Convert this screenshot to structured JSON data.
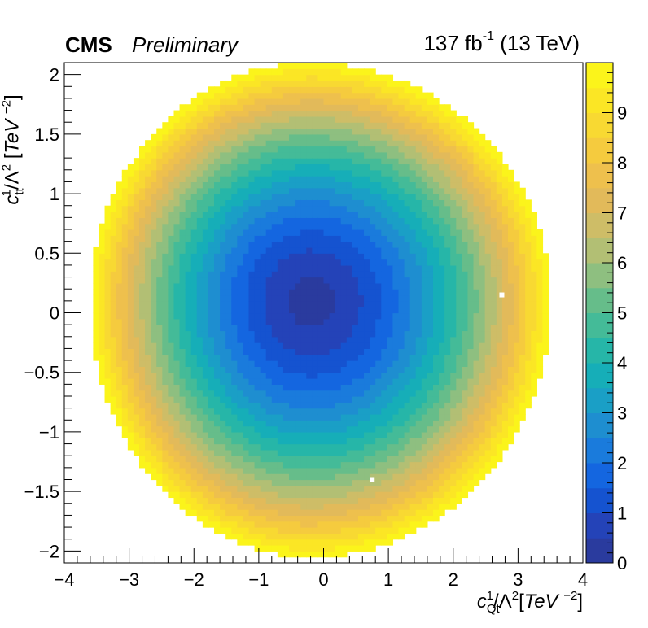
{
  "header": {
    "experiment": "CMS",
    "status": "Preliminary",
    "lumi_value": "137 fb",
    "lumi_exp": "-1",
    "energy": "(13 TeV)"
  },
  "chart_data": {
    "type": "heatmap",
    "title": "",
    "xlabel": "c_Qt^1/Λ^2[TeV^-2]",
    "ylabel": "c_tt^1/Λ^2[TeV^-2]",
    "xlim": [
      -4,
      4
    ],
    "ylim": [
      -2.1,
      2.1
    ],
    "zlim": [
      0,
      10
    ],
    "xticks": [
      "−4",
      "−3",
      "−2",
      "−1",
      "0",
      "1",
      "2",
      "3",
      "4"
    ],
    "yticks": [
      "−2",
      "−1.5",
      "−1",
      "−0.5",
      "0",
      "0.5",
      "1",
      "1.5",
      "2"
    ],
    "colorbar_ticks": [
      "0",
      "1",
      "2",
      "3",
      "4",
      "5",
      "6",
      "7",
      "8",
      "9"
    ],
    "surface": {
      "description": "approximately elliptical bowl",
      "minimum": {
        "x": -0.2,
        "y": 0.1,
        "z": 0.3
      },
      "z_equals_10_boundary": {
        "x_left": -3.6,
        "x_right": 3.5,
        "y_bottom": -2.05,
        "y_top": 2.1
      }
    },
    "markers": [
      {
        "x": 2.75,
        "y": 0.15,
        "color": "#ffffff"
      },
      {
        "x": 0.75,
        "y": -1.4,
        "color": "#ffffff"
      }
    ],
    "palette": [
      "#2a3b9e",
      "#2443b8",
      "#1553d0",
      "#1466e0",
      "#1a7bdc",
      "#1e8ed0",
      "#1a9fc6",
      "#16aeb8",
      "#26b6a8",
      "#44bb98",
      "#66bd8a",
      "#8ebf80",
      "#b2bf74",
      "#cebd67",
      "#e2ba5a",
      "#eec04d",
      "#f5cb3e",
      "#f8d932",
      "#fbe625",
      "#fbf41b"
    ]
  }
}
